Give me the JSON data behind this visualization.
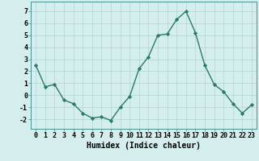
{
  "x": [
    0,
    1,
    2,
    3,
    4,
    5,
    6,
    7,
    8,
    9,
    10,
    11,
    12,
    13,
    14,
    15,
    16,
    17,
    18,
    19,
    20,
    21,
    22,
    23
  ],
  "y": [
    2.5,
    0.7,
    0.9,
    -0.4,
    -0.7,
    -1.5,
    -1.9,
    -1.8,
    -2.1,
    -1.0,
    -0.1,
    2.2,
    3.2,
    5.0,
    5.1,
    6.3,
    7.0,
    5.2,
    2.5,
    0.9,
    0.3,
    -0.7,
    -1.5,
    -0.8
  ],
  "xlabel": "Humidex (Indice chaleur)",
  "ylim": [
    -2.8,
    7.8
  ],
  "yticks": [
    -2,
    -1,
    0,
    1,
    2,
    3,
    4,
    5,
    6,
    7
  ],
  "xticks": [
    0,
    1,
    2,
    3,
    4,
    5,
    6,
    7,
    8,
    9,
    10,
    11,
    12,
    13,
    14,
    15,
    16,
    17,
    18,
    19,
    20,
    21,
    22,
    23
  ],
  "line_color": "#2a7a6a",
  "marker_color": "#2a7a6a",
  "bg_color": "#d4eeee",
  "grid_color": "#b8d8d8",
  "xlabel_fontsize": 7,
  "tick_fontsize": 6
}
